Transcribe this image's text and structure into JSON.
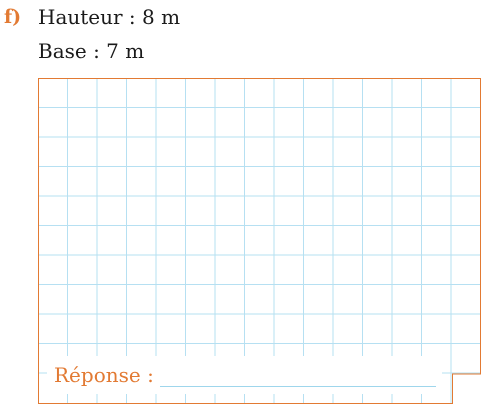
{
  "exercise": {
    "label": "f)",
    "line1": "Hauteur : 8 m",
    "line2": "Base : 7 m"
  },
  "answer": {
    "label": "Réponse :"
  },
  "colors": {
    "accent": "#e27a33",
    "grid_line": "#b6e0f2",
    "text": "#1a1a1a"
  }
}
